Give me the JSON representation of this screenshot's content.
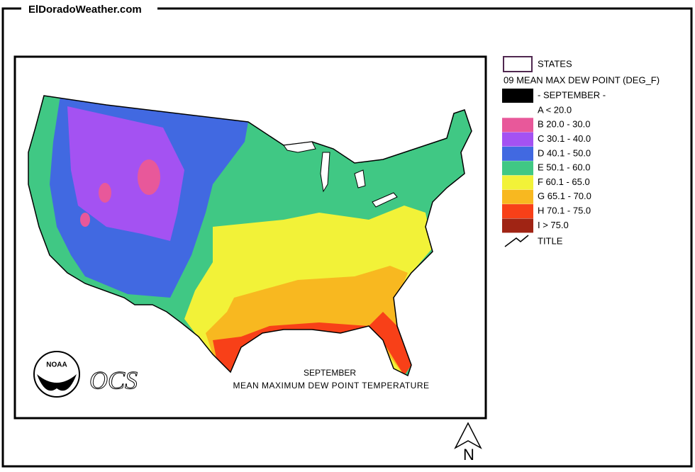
{
  "header": {
    "site": "ElDoradoWeather.com"
  },
  "map": {
    "title": "SEPTEMBER",
    "subtitle": "MEAN MAXIMUM DEW POINT TEMPERATURE",
    "agency": "NOAA",
    "logo_text": "OCS"
  },
  "legend": {
    "states": "STATES",
    "layer": "09 MEAN MAX DEW POINT (DEG_F)",
    "month": "- SEPTEMBER -",
    "classes": [
      {
        "label": "A < 20.0"
      },
      {
        "label": "B 20.0 - 30.0",
        "color": "#e8589a"
      },
      {
        "label": "C 30.1 - 40.0",
        "color": "#a452f2"
      },
      {
        "label": "D 40.1 - 50.0",
        "color": "#4169e1"
      },
      {
        "label": "E 50.1 - 60.0",
        "color": "#40c884"
      },
      {
        "label": "F 60.1 - 65.0",
        "color": "#f2f238"
      },
      {
        "label": "G 65.1 - 70.0",
        "color": "#f8b820"
      },
      {
        "label": "H 70.1 - 75.0",
        "color": "#f84018"
      },
      {
        "label": "I > 75.0",
        "color": "#a02414"
      }
    ],
    "title": "TITLE"
  },
  "compass": "N"
}
